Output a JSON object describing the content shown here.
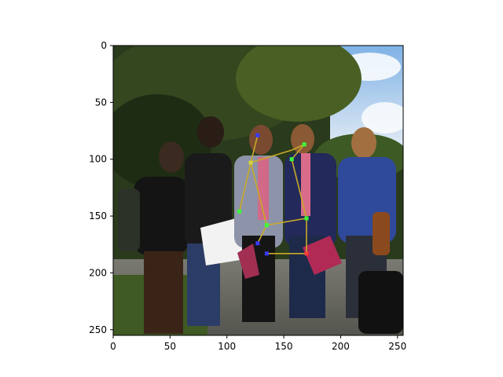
{
  "chart_data": {
    "type": "scatter",
    "title": "",
    "xlabel": "",
    "ylabel": "",
    "xlim": [
      0,
      255
    ],
    "ylim": [
      255,
      0
    ],
    "y_inverted": true,
    "grid": false,
    "xticks": [
      0,
      50,
      100,
      150,
      200,
      250
    ],
    "yticks": [
      0,
      50,
      100,
      150,
      200,
      250
    ],
    "xtick_labels": [
      "0",
      "50",
      "100",
      "150",
      "200",
      "250"
    ],
    "ytick_labels": [
      "0",
      "50",
      "100",
      "150",
      "200",
      "250"
    ],
    "background_image": "photo of a group of students standing outdoors in front of trees",
    "keypoints": {
      "x": [
        127,
        168,
        121,
        157,
        111,
        135,
        170,
        127,
        135,
        170
      ],
      "y": [
        79,
        87,
        103,
        100,
        146,
        158,
        152,
        174,
        183,
        183
      ],
      "colors": [
        "#3a3aff",
        "#3aff3a",
        "#d4d43a",
        "#3aff3a",
        "#3aff3a",
        "#3aff3a",
        "#3aff3a",
        "#3a3aff",
        "#3a3aff",
        "#ff3a3a"
      ]
    },
    "skeleton": {
      "color": "#c8aa28",
      "segments": [
        [
          [
            127,
            79
          ],
          [
            121,
            103
          ]
        ],
        [
          [
            121,
            103
          ],
          [
            157,
            92
          ]
        ],
        [
          [
            157,
            92
          ],
          [
            168,
            87
          ]
        ],
        [
          [
            121,
            103
          ],
          [
            135,
            158
          ]
        ],
        [
          [
            168,
            87
          ],
          [
            157,
            100
          ]
        ],
        [
          [
            157,
            100
          ],
          [
            170,
            152
          ]
        ],
        [
          [
            135,
            158
          ],
          [
            170,
            152
          ]
        ],
        [
          [
            135,
            158
          ],
          [
            127,
            174
          ]
        ],
        [
          [
            170,
            152
          ],
          [
            170,
            183
          ]
        ],
        [
          [
            135,
            183
          ],
          [
            170,
            183
          ]
        ],
        [
          [
            121,
            103
          ],
          [
            111,
            146
          ]
        ]
      ]
    }
  }
}
